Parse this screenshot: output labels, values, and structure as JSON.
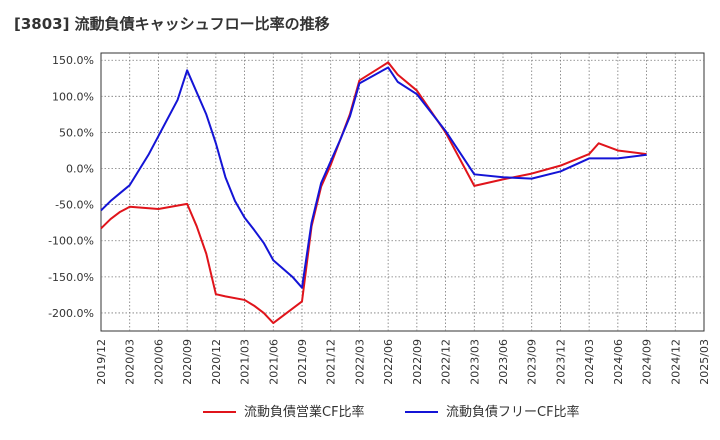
{
  "chart_data": {
    "type": "line",
    "title": "[3803]  流動負債キャッシュフロー比率の推移",
    "xlabel": "",
    "ylabel": "",
    "ylim": [
      -225,
      160
    ],
    "y_ticks": [
      150,
      100,
      50,
      0,
      -50,
      -100,
      -150,
      -200
    ],
    "y_tick_labels": [
      "150.0%",
      "100.0%",
      "50.0%",
      "0.0%",
      "-50.0%",
      "-100.0%",
      "-150.0%",
      "-200.0%"
    ],
    "x_tick_labels": [
      "2019/12",
      "2020/03",
      "2020/06",
      "2020/09",
      "2020/12",
      "2021/03",
      "2021/06",
      "2021/09",
      "2021/12",
      "2022/03",
      "2022/06",
      "2022/09",
      "2022/12",
      "2023/03",
      "2023/06",
      "2023/09",
      "2023/12",
      "2024/03",
      "2024/06",
      "2024/09",
      "2024/12",
      "2025/03"
    ],
    "grid": true,
    "legend_position": "bottom",
    "series": [
      {
        "name": "流動負債営業CF比率",
        "color": "#e0141b",
        "points": [
          [
            "2019/12",
            -83
          ],
          [
            "2020/01",
            -70
          ],
          [
            "2020/02",
            -60
          ],
          [
            "2020/03",
            -53
          ],
          [
            "2020/06",
            -56
          ],
          [
            "2020/09",
            -49
          ],
          [
            "2020/10",
            -80
          ],
          [
            "2020/11",
            -118
          ],
          [
            "2020/12",
            -174
          ],
          [
            "2021/01",
            -177
          ],
          [
            "2021/03",
            -182
          ],
          [
            "2021/04",
            -190
          ],
          [
            "2021/05",
            -200
          ],
          [
            "2021/06",
            -214
          ],
          [
            "2021/09",
            -184
          ],
          [
            "2021/10",
            -80
          ],
          [
            "2021/11",
            -25
          ],
          [
            "2021/12",
            5
          ],
          [
            "2022/02",
            75
          ],
          [
            "2022/03",
            122
          ],
          [
            "2022/06",
            147
          ],
          [
            "2022/07",
            130
          ],
          [
            "2022/09",
            108
          ],
          [
            "2022/12",
            50
          ],
          [
            "2023/03",
            -24
          ],
          [
            "2023/06",
            -15
          ],
          [
            "2023/09",
            -7
          ],
          [
            "2023/12",
            4
          ],
          [
            "2024/03",
            20
          ],
          [
            "2024/04",
            35
          ],
          [
            "2024/06",
            25
          ],
          [
            "2024/09",
            20
          ]
        ]
      },
      {
        "name": "流動負債フリーCF比率",
        "color": "#1414d6",
        "points": [
          [
            "2019/12",
            -58
          ],
          [
            "2020/01",
            -45
          ],
          [
            "2020/02",
            -34
          ],
          [
            "2020/03",
            -23
          ],
          [
            "2020/05",
            20
          ],
          [
            "2020/06",
            45
          ],
          [
            "2020/08",
            95
          ],
          [
            "2020/09",
            136
          ],
          [
            "2020/11",
            75
          ],
          [
            "2020/12",
            35
          ],
          [
            "2021/01",
            -12
          ],
          [
            "2021/02",
            -45
          ],
          [
            "2021/03",
            -68
          ],
          [
            "2021/04",
            -85
          ],
          [
            "2021/05",
            -103
          ],
          [
            "2021/06",
            -127
          ],
          [
            "2021/08",
            -150
          ],
          [
            "2021/09",
            -165
          ],
          [
            "2021/10",
            -75
          ],
          [
            "2021/11",
            -20
          ],
          [
            "2021/12",
            10
          ],
          [
            "2022/01",
            40
          ],
          [
            "2022/02",
            72
          ],
          [
            "2022/03",
            118
          ],
          [
            "2022/06",
            140
          ],
          [
            "2022/07",
            120
          ],
          [
            "2022/09",
            103
          ],
          [
            "2022/12",
            52
          ],
          [
            "2023/03",
            -8
          ],
          [
            "2023/06",
            -12
          ],
          [
            "2023/09",
            -14
          ],
          [
            "2023/12",
            -4
          ],
          [
            "2024/03",
            14
          ],
          [
            "2024/06",
            14
          ],
          [
            "2024/09",
            19
          ]
        ]
      }
    ]
  }
}
